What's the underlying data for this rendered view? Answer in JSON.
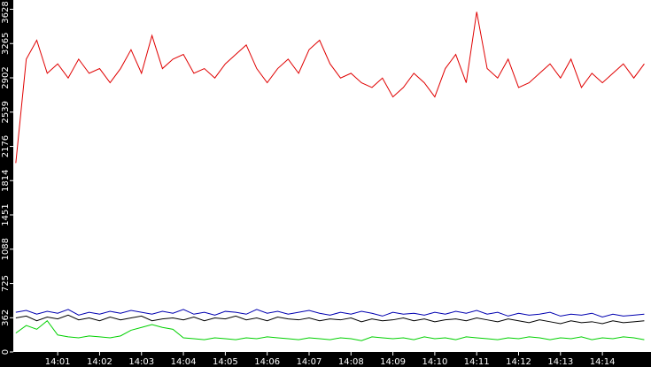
{
  "chart_data": {
    "type": "line",
    "x": [
      0,
      0.25,
      0.5,
      0.75,
      1,
      1.25,
      1.5,
      1.75,
      2,
      2.25,
      2.5,
      2.75,
      3,
      3.25,
      3.5,
      3.75,
      4,
      4.25,
      4.5,
      4.75,
      5,
      5.25,
      5.5,
      5.75,
      6,
      6.25,
      6.5,
      6.75,
      7,
      7.25,
      7.5,
      7.75,
      8,
      8.25,
      8.5,
      8.75,
      9,
      9.25,
      9.5,
      9.75,
      10,
      10.25,
      10.5,
      10.75,
      11,
      11.25,
      11.5,
      11.75,
      12,
      12.25,
      12.5,
      12.75,
      13,
      13.25,
      13.5,
      13.75,
      14,
      14.25,
      14.5,
      14.75,
      15
    ],
    "xlim": [
      -0.06,
      15.16
    ],
    "xticks": [
      {
        "value": 1,
        "label": "14:01"
      },
      {
        "value": 2,
        "label": "14:02"
      },
      {
        "value": 3,
        "label": "14:03"
      },
      {
        "value": 4,
        "label": "14:04"
      },
      {
        "value": 5,
        "label": "14:05"
      },
      {
        "value": 6,
        "label": "14:06"
      },
      {
        "value": 7,
        "label": "14:07"
      },
      {
        "value": 8,
        "label": "14:08"
      },
      {
        "value": 9,
        "label": "14:09"
      },
      {
        "value": 10,
        "label": "14:10"
      },
      {
        "value": 11,
        "label": "14:11"
      },
      {
        "value": 12,
        "label": "14:12"
      },
      {
        "value": 13,
        "label": "14:13"
      },
      {
        "value": 14,
        "label": "14:14"
      }
    ],
    "ylim": [
      0,
      3726
    ],
    "yticks": [
      0,
      362,
      725,
      1088,
      1451,
      1814,
      2176,
      2539,
      2902,
      3265,
      3628
    ],
    "series": [
      {
        "color": "#e00000",
        "values": [
          2000,
          3100,
          3300,
          2950,
          3050,
          2900,
          3100,
          2950,
          3000,
          2850,
          3000,
          3200,
          2950,
          3350,
          3000,
          3100,
          3150,
          2950,
          3000,
          2900,
          3050,
          3150,
          3250,
          3000,
          2850,
          3000,
          3100,
          2950,
          3200,
          3300,
          3050,
          2900,
          2950,
          2850,
          2800,
          2900,
          2700,
          2800,
          2950,
          2850,
          2700,
          3000,
          3150,
          2850,
          3600,
          3000,
          2900,
          3100,
          2800,
          2850,
          2950,
          3050,
          2900,
          3100,
          2800,
          2950,
          2850,
          2950,
          3050,
          2900,
          3050
        ]
      },
      {
        "color": "#0000b0",
        "values": [
          420,
          440,
          400,
          430,
          410,
          450,
          390,
          420,
          400,
          430,
          410,
          440,
          420,
          400,
          430,
          410,
          450,
          400,
          420,
          390,
          430,
          420,
          400,
          450,
          410,
          430,
          400,
          420,
          440,
          410,
          390,
          420,
          400,
          430,
          410,
          380,
          420,
          400,
          410,
          390,
          420,
          400,
          430,
          410,
          440,
          400,
          420,
          380,
          410,
          390,
          400,
          420,
          380,
          400,
          390,
          410,
          370,
          400,
          380,
          390,
          400
        ]
      },
      {
        "color": "#000000",
        "values": [
          360,
          380,
          330,
          370,
          350,
          390,
          340,
          360,
          330,
          370,
          340,
          360,
          380,
          330,
          350,
          360,
          340,
          370,
          330,
          360,
          350,
          380,
          340,
          360,
          330,
          370,
          350,
          340,
          360,
          330,
          350,
          340,
          360,
          320,
          350,
          330,
          340,
          360,
          330,
          350,
          320,
          340,
          350,
          330,
          360,
          340,
          320,
          350,
          330,
          310,
          340,
          320,
          300,
          330,
          310,
          320,
          300,
          330,
          310,
          320,
          330
        ]
      },
      {
        "color": "#00d000",
        "values": [
          200,
          280,
          240,
          330,
          180,
          160,
          150,
          170,
          160,
          150,
          170,
          230,
          260,
          290,
          260,
          240,
          150,
          140,
          130,
          150,
          140,
          130,
          150,
          140,
          160,
          150,
          140,
          130,
          150,
          140,
          130,
          150,
          140,
          120,
          160,
          150,
          140,
          150,
          130,
          160,
          140,
          150,
          130,
          160,
          150,
          140,
          130,
          150,
          140,
          160,
          150,
          130,
          150,
          140,
          160,
          130,
          150,
          140,
          160,
          150,
          130
        ]
      }
    ]
  }
}
